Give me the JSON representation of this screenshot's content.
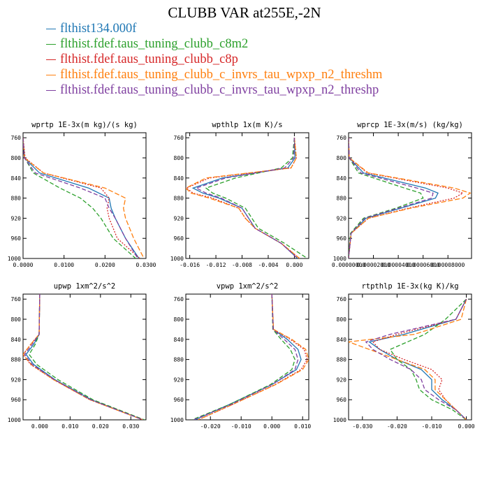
{
  "title": "CLUBB VAR at255E,-2N",
  "legend": [
    {
      "label": "flthist134.000f",
      "color": "#1f77b4"
    },
    {
      "label": "flthist.fdef.taus_tuning_clubb_c8m2",
      "color": "#2ca02c"
    },
    {
      "label": "flthist.fdef.taus_tuning_clubb_c8p",
      "color": "#d62728"
    },
    {
      "label": "flthist.fdef.taus_tuning_clubb_c_invrs_tau_wpxp_n2_threshm",
      "color": "#ff7f0e"
    },
    {
      "label": "flthist.fdef.taus_tuning_clubb_c_invrs_tau_wpxp_n2_threshp",
      "color": "#7f3fa0"
    }
  ],
  "chart_data": [
    {
      "type": "line",
      "title": "wprtp  1E-3x(m kg)/(s kg)",
      "xlim": [
        0,
        0.03
      ],
      "ylim": [
        1000,
        750
      ],
      "xticks": [
        "0.0000",
        "0.0100",
        "0.0200",
        "0.0300"
      ],
      "xtick_values": [
        0,
        0.01,
        0.02,
        0.03
      ],
      "yticks": [
        760,
        800,
        840,
        880,
        920,
        960,
        1000
      ],
      "y": [
        760,
        800,
        830,
        860,
        880,
        900,
        920,
        960,
        1000
      ],
      "series": [
        {
          "values": [
            0.0,
            0.0003,
            0.004,
            0.016,
            0.021,
            0.0215,
            0.0225,
            0.025,
            0.0283
          ]
        },
        {
          "values": [
            0.0,
            0.0004,
            0.0025,
            0.009,
            0.014,
            0.017,
            0.019,
            0.022,
            0.0275
          ]
        },
        {
          "values": [
            0.0,
            0.0005,
            0.005,
            0.019,
            0.021,
            0.0205,
            0.021,
            0.023,
            0.0285
          ]
        },
        {
          "values": [
            0.0,
            0.0003,
            0.005,
            0.02,
            0.025,
            0.0245,
            0.025,
            0.027,
            0.0295
          ]
        },
        {
          "values": [
            0.0,
            0.0003,
            0.003,
            0.014,
            0.02,
            0.021,
            0.0225,
            0.025,
            0.028
          ]
        }
      ]
    },
    {
      "type": "line",
      "title": "wpthlp  1x(m K)/s",
      "xlim": [
        -0.0166,
        0.0022
      ],
      "ylim": [
        1000,
        750
      ],
      "xticks": [
        "-0.016",
        "-0.012",
        "-0.008",
        "-0.004",
        "0.000"
      ],
      "xtick_values": [
        -0.016,
        -0.012,
        -0.008,
        -0.004,
        0
      ],
      "yticks": [
        760,
        800,
        840,
        880,
        920,
        960,
        1000
      ],
      "y": [
        760,
        800,
        820,
        840,
        860,
        870,
        880,
        900,
        920,
        940,
        970,
        1000
      ],
      "series": [
        {
          "values": [
            0.0,
            0.0001,
            -0.001,
            -0.011,
            -0.0155,
            -0.014,
            -0.0115,
            -0.008,
            -0.007,
            -0.006,
            -0.002,
            0.0005
          ]
        },
        {
          "values": [
            0.0,
            -0.0003,
            -0.002,
            -0.009,
            -0.0135,
            -0.0125,
            -0.0105,
            -0.0075,
            -0.0065,
            -0.0055,
            -0.0015,
            0.002
          ]
        },
        {
          "values": [
            0.0,
            0.0003,
            -0.0005,
            -0.013,
            -0.0165,
            -0.0155,
            -0.0125,
            -0.0085,
            -0.0075,
            -0.006,
            -0.002,
            0.0008
          ]
        },
        {
          "values": [
            0.0,
            0.0003,
            -0.0005,
            -0.0135,
            -0.0166,
            -0.0158,
            -0.013,
            -0.0085,
            -0.0075,
            -0.006,
            -0.002,
            0.0008
          ]
        },
        {
          "values": [
            0.0,
            -0.0001,
            -0.0015,
            -0.0105,
            -0.015,
            -0.0135,
            -0.0112,
            -0.008,
            -0.007,
            -0.006,
            -0.002,
            0.0005
          ]
        }
      ]
    },
    {
      "type": "line",
      "title": "wprcp  1E-3x(m/s) (kg/kg)",
      "xlim": [
        0,
        9.9e-05
      ],
      "ylim": [
        1000,
        750
      ],
      "xticks": [
        "0.00000000",
        "0.00002000",
        "0.00004000",
        "0.00006000",
        "0.00008000"
      ],
      "xtick_values": [
        0,
        2e-05,
        4e-05,
        6e-05,
        8e-05
      ],
      "yticks": [
        760,
        800,
        840,
        880,
        920,
        960,
        1000
      ],
      "y": [
        760,
        800,
        830,
        860,
        870,
        880,
        900,
        920,
        950,
        1000
      ],
      "series": [
        {
          "values": [
            0,
            5e-07,
            1.2e-05,
            6.2e-05,
            7.2e-05,
            7e-05,
            4.2e-05,
            1.4e-05,
            2e-06,
            0
          ]
        },
        {
          "values": [
            0,
            5e-07,
            8e-06,
            4.5e-05,
            5.8e-05,
            6e-05,
            3.8e-05,
            1.2e-05,
            1.5e-06,
            0
          ]
        },
        {
          "values": [
            0,
            5e-07,
            1.5e-05,
            8e-05,
            9.2e-05,
            8.5e-05,
            4.8e-05,
            1.6e-05,
            2e-06,
            0
          ]
        },
        {
          "values": [
            0,
            5e-07,
            1.6e-05,
            8.5e-05,
            9.8e-05,
            9.2e-05,
            5e-05,
            1.6e-05,
            2e-06,
            0
          ]
        },
        {
          "values": [
            0,
            5e-07,
            1e-05,
            5.5e-05,
            6.8e-05,
            6.7e-05,
            4e-05,
            1.3e-05,
            2e-06,
            0
          ]
        }
      ]
    },
    {
      "type": "line",
      "title": "upwp  1xm^2/s^2",
      "xlim": [
        -0.0055,
        0.035
      ],
      "ylim": [
        1000,
        750
      ],
      "xticks": [
        "0.000",
        "0.010",
        "0.020",
        "0.030"
      ],
      "xtick_values": [
        0,
        0.01,
        0.02,
        0.03
      ],
      "yticks": [
        760,
        800,
        840,
        880,
        920,
        960,
        1000
      ],
      "y": [
        750,
        830,
        850,
        870,
        890,
        920,
        960,
        1000
      ],
      "series": [
        {
          "values": [
            0.0,
            -0.0002,
            -0.002,
            -0.0045,
            -0.002,
            0.005,
            0.017,
            0.034
          ]
        },
        {
          "values": [
            0.0,
            -0.0002,
            -0.0015,
            -0.0035,
            -0.001,
            0.006,
            0.0175,
            0.0345
          ]
        },
        {
          "values": [
            0.0,
            -0.0002,
            -0.003,
            -0.0055,
            -0.003,
            0.0045,
            0.0165,
            0.034
          ]
        },
        {
          "values": [
            0.0,
            -0.0002,
            -0.003,
            -0.0055,
            -0.0028,
            0.0045,
            0.0165,
            0.034
          ]
        },
        {
          "values": [
            0.0,
            -0.0002,
            -0.0025,
            -0.005,
            -0.0025,
            0.0048,
            0.0168,
            0.034
          ]
        }
      ]
    },
    {
      "type": "line",
      "title": "vpwp  1xm^2/s^2",
      "xlim": [
        -0.028,
        0.012
      ],
      "ylim": [
        1000,
        750
      ],
      "xticks": [
        "-0.020",
        "-0.010",
        "0.000",
        "0.010"
      ],
      "xtick_values": [
        -0.02,
        -0.01,
        0,
        0.01
      ],
      "yticks": [
        760,
        800,
        840,
        880,
        920,
        960,
        1000
      ],
      "y": [
        750,
        820,
        840,
        860,
        880,
        900,
        930,
        970,
        1000
      ],
      "series": [
        {
          "values": [
            0.0,
            0.0005,
            0.005,
            0.0085,
            0.0095,
            0.008,
            0.0,
            -0.014,
            -0.025
          ]
        },
        {
          "values": [
            0.0,
            0.0003,
            0.003,
            0.006,
            0.0075,
            0.0065,
            -0.0005,
            -0.014,
            -0.026
          ]
        },
        {
          "values": [
            0.0,
            0.0005,
            0.006,
            0.0105,
            0.0115,
            0.0095,
            0.001,
            -0.013,
            -0.024
          ]
        },
        {
          "values": [
            0.0,
            0.0005,
            0.0065,
            0.011,
            0.012,
            0.01,
            0.0012,
            -0.013,
            -0.024
          ]
        },
        {
          "values": [
            0.0,
            0.0004,
            0.004,
            0.0075,
            0.0085,
            0.0075,
            0.0,
            -0.0135,
            -0.0255
          ]
        }
      ]
    },
    {
      "type": "line",
      "title": "rtpthlp  1E-3x(kg K)/kg",
      "xlim": [
        -0.034,
        0.0015
      ],
      "ylim": [
        1000,
        750
      ],
      "xticks": [
        "-0.030",
        "-0.020",
        "-0.010",
        "0.000"
      ],
      "xtick_values": [
        -0.03,
        -0.02,
        -0.01,
        0
      ],
      "yticks": [
        760,
        800,
        840,
        880,
        920,
        960,
        1000
      ],
      "y": [
        760,
        800,
        830,
        845,
        860,
        880,
        900,
        920,
        940,
        960,
        980,
        1000
      ],
      "series": [
        {
          "values": [
            0.0,
            -0.003,
            -0.018,
            -0.028,
            -0.025,
            -0.02,
            -0.013,
            -0.01,
            -0.01,
            -0.007,
            -0.003,
            0.0
          ]
        },
        {
          "values": [
            0.0,
            -0.006,
            -0.012,
            -0.017,
            -0.022,
            -0.02,
            -0.016,
            -0.0145,
            -0.0135,
            -0.01,
            -0.004,
            0.0
          ]
        },
        {
          "values": [
            0.0,
            -0.003,
            -0.02,
            -0.027,
            -0.025,
            -0.018,
            -0.01,
            -0.007,
            -0.008,
            -0.006,
            -0.003,
            0.0
          ]
        },
        {
          "values": [
            0.0,
            -0.0015,
            -0.015,
            -0.034,
            -0.028,
            -0.02,
            -0.012,
            -0.009,
            -0.009,
            -0.006,
            -0.003,
            0.0
          ]
        },
        {
          "values": [
            0.0,
            -0.003,
            -0.022,
            -0.029,
            -0.027,
            -0.022,
            -0.016,
            -0.013,
            -0.012,
            -0.008,
            -0.003,
            0.0
          ]
        }
      ]
    }
  ]
}
